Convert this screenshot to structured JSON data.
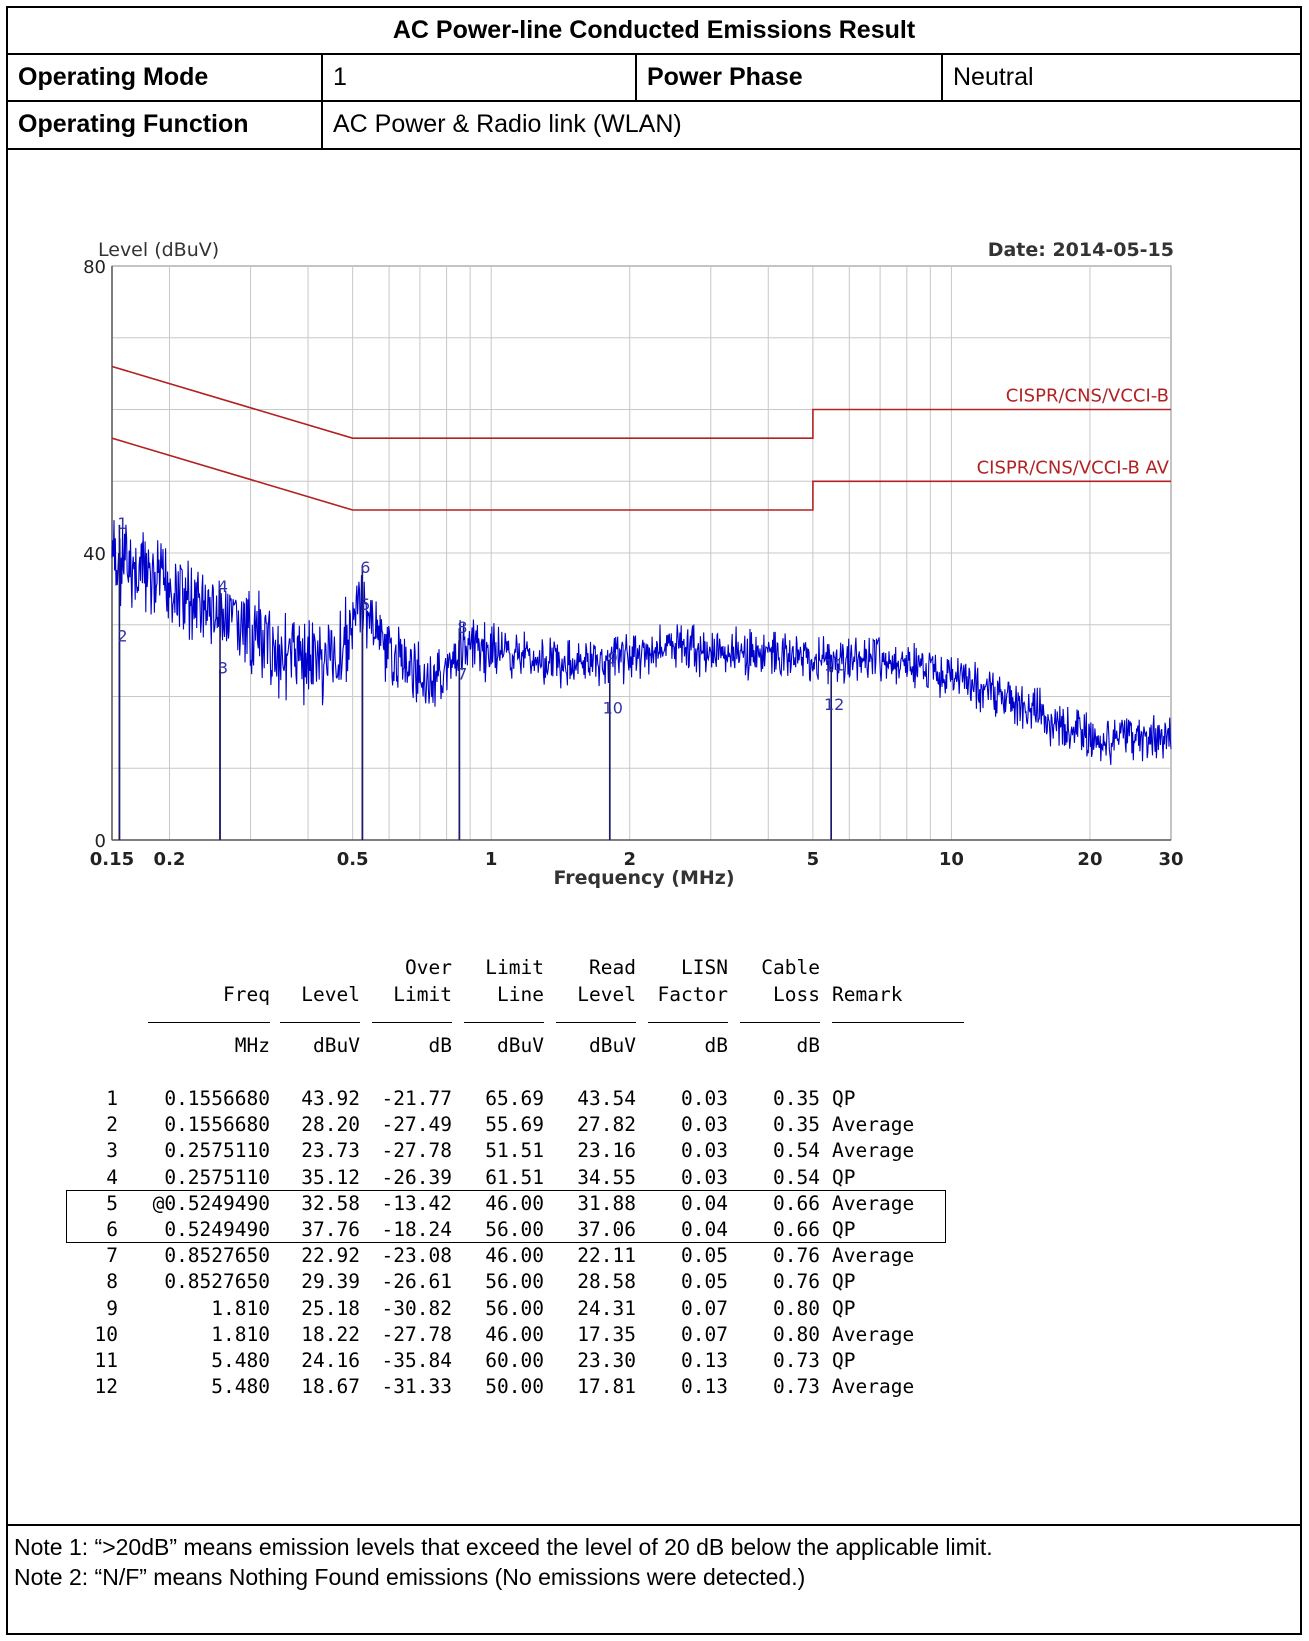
{
  "header": {
    "title": "AC Power-line Conducted Emissions Result",
    "operating_mode_label": "Operating Mode",
    "operating_mode_value": "1",
    "power_phase_label": "Power Phase",
    "power_phase_value": "Neutral",
    "operating_function_label": "Operating Function",
    "operating_function_value": "AC Power & Radio link (WLAN)"
  },
  "chart_data": {
    "type": "line",
    "ylabel": "Level (dBuV)",
    "xlabel": "Frequency (MHz)",
    "date": "Date: 2014-05-15",
    "xscale": "log",
    "xlim": [
      0.15,
      30
    ],
    "ylim": [
      0,
      80
    ],
    "x_tick_labels": [
      {
        "label": "0.15",
        "value": 0.15
      },
      {
        "label": "0.2",
        "value": 0.2
      },
      {
        "label": "0.5",
        "value": 0.5
      },
      {
        "label": "1",
        "value": 1
      },
      {
        "label": "2",
        "value": 2
      },
      {
        "label": "5",
        "value": 5
      },
      {
        "label": "10",
        "value": 10
      },
      {
        "label": "20",
        "value": 20
      },
      {
        "label": "30",
        "value": 30
      }
    ],
    "y_tick_labels": [
      {
        "label": "0",
        "value": 0
      },
      {
        "label": "40",
        "value": 40
      },
      {
        "label": "80",
        "value": 80
      }
    ],
    "grid": true,
    "limit_lines": [
      {
        "name": "CISPR/CNS/VCCI-B",
        "color": "#b22222",
        "points": [
          [
            0.15,
            66
          ],
          [
            0.5,
            56
          ],
          [
            5,
            56
          ],
          [
            5,
            60
          ],
          [
            30,
            60
          ]
        ]
      },
      {
        "name": "CISPR/CNS/VCCI-B AV",
        "color": "#b22222",
        "points": [
          [
            0.15,
            56
          ],
          [
            0.5,
            46
          ],
          [
            5,
            46
          ],
          [
            5,
            50
          ],
          [
            30,
            50
          ]
        ]
      }
    ],
    "trace_color": "#0000cc",
    "trace_envelope": [
      [
        0.15,
        44
      ],
      [
        0.2,
        40
      ],
      [
        0.26,
        36
      ],
      [
        0.35,
        31
      ],
      [
        0.45,
        30
      ],
      [
        0.52,
        36
      ],
      [
        0.6,
        29
      ],
      [
        0.75,
        25
      ],
      [
        0.85,
        30
      ],
      [
        1.0,
        29
      ],
      [
        1.3,
        27
      ],
      [
        1.8,
        27
      ],
      [
        2.5,
        29
      ],
      [
        3.5,
        28
      ],
      [
        5.0,
        27
      ],
      [
        7.0,
        27
      ],
      [
        10.0,
        25
      ],
      [
        15.0,
        20
      ],
      [
        20.0,
        16
      ],
      [
        30.0,
        16
      ]
    ],
    "markers": [
      {
        "id": "1",
        "freq": 0.155668,
        "level": 43.92
      },
      {
        "id": "2",
        "freq": 0.155668,
        "level": 28.2
      },
      {
        "id": "3",
        "freq": 0.257511,
        "level": 23.73
      },
      {
        "id": "4",
        "freq": 0.257511,
        "level": 35.12
      },
      {
        "id": "5",
        "freq": 0.524949,
        "level": 32.58
      },
      {
        "id": "6",
        "freq": 0.524949,
        "level": 37.76
      },
      {
        "id": "7",
        "freq": 0.852765,
        "level": 22.92
      },
      {
        "id": "8",
        "freq": 0.852765,
        "level": 29.39
      },
      {
        "id": "9",
        "freq": 1.81,
        "level": 25.18
      },
      {
        "id": "10",
        "freq": 1.81,
        "level": 18.22
      },
      {
        "id": "11",
        "freq": 5.48,
        "level": 24.16
      },
      {
        "id": "12",
        "freq": 5.48,
        "level": 18.67
      }
    ]
  },
  "table": {
    "header_line1": [
      "",
      "",
      "",
      "Over",
      "Limit",
      "Read",
      "LISN",
      "Cable",
      ""
    ],
    "header_line2": [
      "",
      "Freq",
      "Level",
      "Limit",
      "Line",
      "Level",
      "Factor",
      "Loss",
      "Remark"
    ],
    "units": [
      "",
      "MHz",
      "dBuV",
      "dB",
      "dBuV",
      "dBuV",
      "dB",
      "dB",
      ""
    ],
    "rows": [
      [
        "1",
        "0.1556680",
        "43.92",
        "-21.77",
        "65.69",
        "43.54",
        "0.03",
        "0.35",
        "QP"
      ],
      [
        "2",
        "0.1556680",
        "28.20",
        "-27.49",
        "55.69",
        "27.82",
        "0.03",
        "0.35",
        "Average"
      ],
      [
        "3",
        "0.2575110",
        "23.73",
        "-27.78",
        "51.51",
        "23.16",
        "0.03",
        "0.54",
        "Average"
      ],
      [
        "4",
        "0.2575110",
        "35.12",
        "-26.39",
        "61.51",
        "34.55",
        "0.03",
        "0.54",
        "QP"
      ],
      [
        "5",
        "@0.5249490",
        "32.58",
        "-13.42",
        "46.00",
        "31.88",
        "0.04",
        "0.66",
        "Average"
      ],
      [
        "6",
        "0.5249490",
        "37.76",
        "-18.24",
        "56.00",
        "37.06",
        "0.04",
        "0.66",
        "QP"
      ],
      [
        "7",
        "0.8527650",
        "22.92",
        "-23.08",
        "46.00",
        "22.11",
        "0.05",
        "0.76",
        "Average"
      ],
      [
        "8",
        "0.8527650",
        "29.39",
        "-26.61",
        "56.00",
        "28.58",
        "0.05",
        "0.76",
        "QP"
      ],
      [
        "9",
        "1.810",
        "25.18",
        "-30.82",
        "56.00",
        "24.31",
        "0.07",
        "0.80",
        "QP"
      ],
      [
        "10",
        "1.810",
        "18.22",
        "-27.78",
        "46.00",
        "17.35",
        "0.07",
        "0.80",
        "Average"
      ],
      [
        "11",
        "5.480",
        "24.16",
        "-35.84",
        "60.00",
        "23.30",
        "0.13",
        "0.73",
        "QP"
      ],
      [
        "12",
        "5.480",
        "18.67",
        "-31.33",
        "50.00",
        "17.81",
        "0.13",
        "0.73",
        "Average"
      ]
    ]
  },
  "notes": [
    "Note 1: “>20dB” means emission levels that exceed the level of 20 dB below the applicable limit.",
    "Note 2: “N/F” means Nothing Found emissions (No emissions were detected.)"
  ]
}
